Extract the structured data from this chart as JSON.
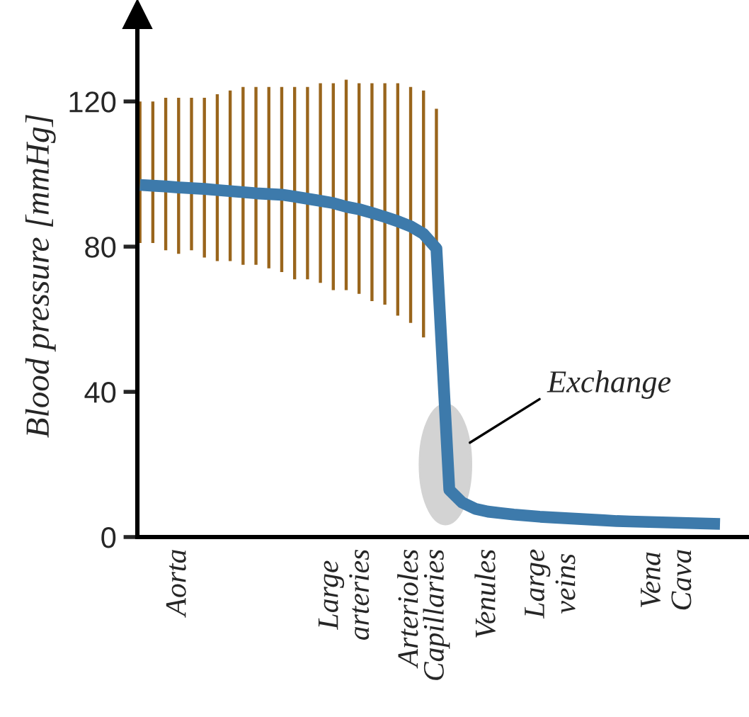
{
  "chart_data": {
    "type": "line",
    "ylabel": "Blood pressure [mmHg]",
    "ylim": [
      0,
      144
    ],
    "yticks": [
      0,
      40,
      80,
      120
    ],
    "categories": [
      null,
      null,
      null,
      "Aorta",
      null,
      null,
      null,
      null,
      null,
      null,
      null,
      null,
      null,
      null,
      null,
      null,
      "Large\narteries",
      null,
      null,
      null,
      null,
      "Arterioles",
      null,
      "Capillaries",
      null,
      null,
      null,
      "Venules",
      null,
      null,
      null,
      null,
      "Large\nveins",
      null,
      null,
      null,
      null,
      null,
      null,
      null,
      null,
      "Vena\nCava",
      null,
      null,
      null,
      null,
      null,
      null
    ],
    "series": [
      {
        "type": "bar",
        "color": "#99651c",
        "base": [
          81,
          81,
          79,
          78,
          79,
          77,
          76,
          76,
          75,
          75,
          74,
          73,
          71,
          71,
          70,
          68,
          68,
          67,
          65,
          64,
          61,
          59,
          55,
          78,
          null,
          null,
          null,
          null,
          null,
          null,
          null,
          null,
          null,
          null,
          null,
          null,
          null,
          null,
          null,
          null,
          null,
          null,
          null,
          null,
          null,
          null,
          null,
          null
        ],
        "values": [
          39,
          39,
          42,
          43,
          42,
          44,
          46,
          47,
          49,
          49,
          50,
          51,
          53,
          53,
          55,
          57,
          58,
          58,
          60,
          61,
          64,
          65,
          68,
          40,
          null,
          null,
          null,
          null,
          null,
          null,
          null,
          null,
          null,
          null,
          null,
          null,
          null,
          null,
          null,
          null,
          null,
          null,
          null,
          null,
          null,
          null,
          null,
          null
        ]
      },
      {
        "color": "#3d7aab",
        "values": [
          97,
          96.8,
          96.6,
          96.3,
          96.1,
          95.9,
          95.6,
          95.3,
          95,
          94.7,
          94.5,
          94.3,
          93.8,
          93.2,
          92.6,
          92,
          91,
          90.3,
          89.3,
          88.2,
          87,
          85.6,
          83.5,
          79.5,
          13,
          9.5,
          7.8,
          7,
          6.6,
          6.2,
          5.9,
          5.6,
          5.4,
          5.2,
          5,
          4.8,
          4.6,
          4.4,
          4.3,
          4.2,
          4.1,
          4,
          3.9,
          3.8,
          3.7,
          3.6,
          null,
          null
        ]
      }
    ],
    "annotations": [
      "Exchange"
    ],
    "grid": false,
    "legend": false
  }
}
